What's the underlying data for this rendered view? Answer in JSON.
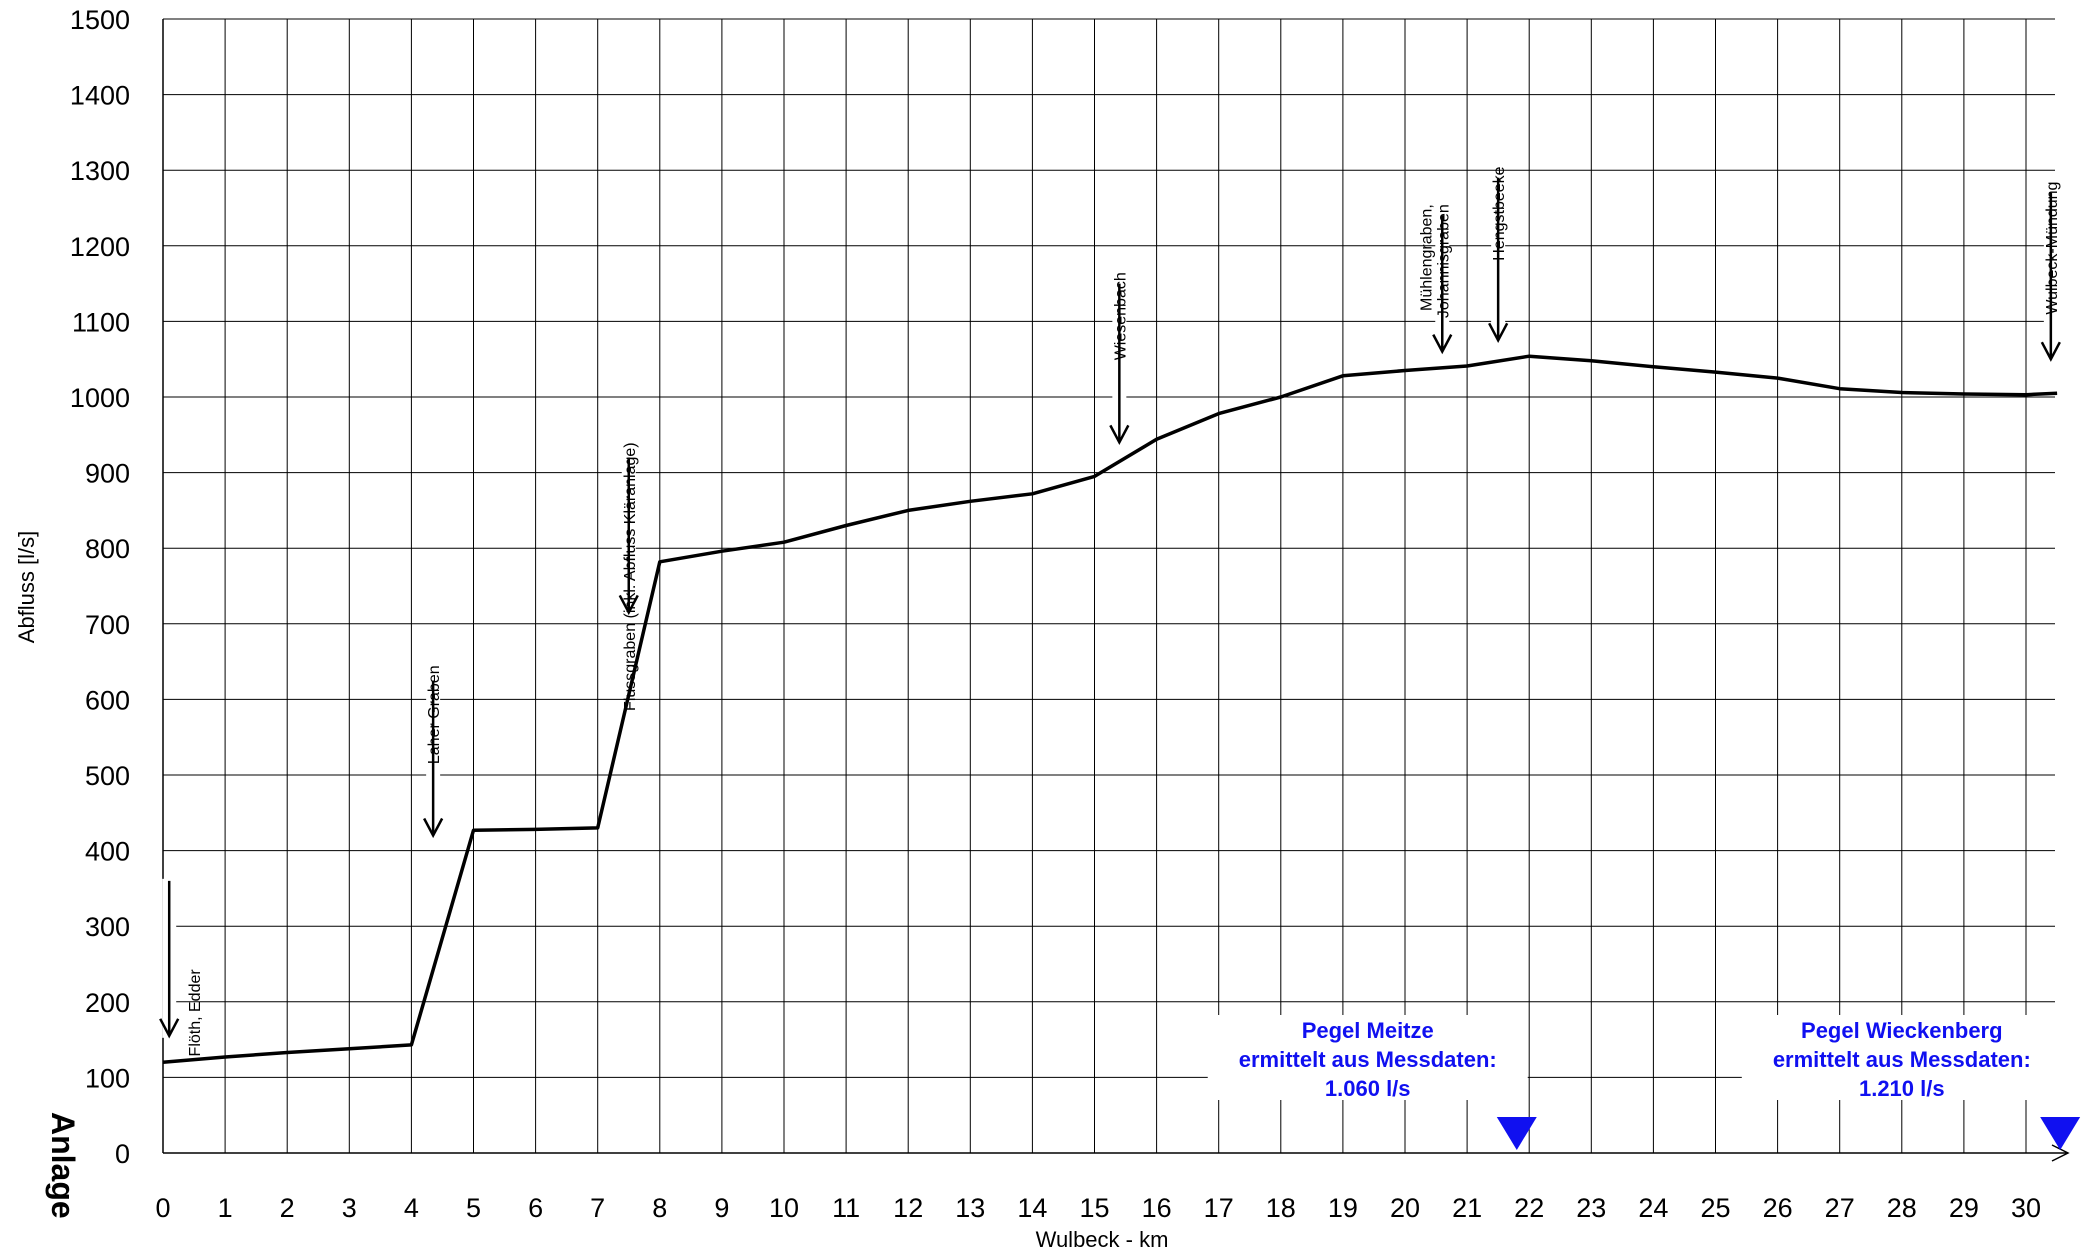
{
  "colors": {
    "line": "#000000",
    "grid": "#000000",
    "gauge": "#1010f0",
    "background": "#ffffff"
  },
  "side_label": "Anlage",
  "chart_data": {
    "type": "line",
    "title": "",
    "xlabel": "Wulbeck - km",
    "ylabel": "Abfluss [l/s]",
    "xlim": [
      0,
      30.5
    ],
    "ylim": [
      0,
      1500
    ],
    "grid": true,
    "x_ticks": [
      0,
      1,
      2,
      3,
      4,
      5,
      6,
      7,
      8,
      9,
      10,
      11,
      12,
      13,
      14,
      15,
      16,
      17,
      18,
      19,
      20,
      21,
      22,
      23,
      24,
      25,
      26,
      27,
      28,
      29,
      30
    ],
    "y_ticks": [
      0,
      100,
      200,
      300,
      400,
      500,
      600,
      700,
      800,
      900,
      1000,
      1100,
      1200,
      1300,
      1400,
      1500
    ],
    "series": [
      {
        "x": [
          0,
          1,
          2,
          3,
          4,
          5,
          6,
          7,
          8,
          9,
          10,
          11,
          12,
          13,
          14,
          15,
          16,
          17,
          18,
          19,
          20,
          21,
          22,
          23,
          24,
          25,
          26,
          27,
          28,
          29,
          30,
          30.5
        ],
        "y": [
          120,
          127,
          133,
          138,
          143,
          427,
          428,
          430,
          782,
          796,
          808,
          830,
          850,
          862,
          872,
          895,
          944,
          978,
          1000,
          1028,
          1035,
          1041,
          1054,
          1048,
          1040,
          1033,
          1025,
          1011,
          1006,
          1004,
          1003,
          1005
        ]
      }
    ],
    "annotations": [
      {
        "text": "Flöth, Edder",
        "x": 0.1,
        "arrow_top": 360,
        "arrow_bottom": 155,
        "text_bottom_y": 243,
        "text_x": 0.5
      },
      {
        "text": "Laher Graben",
        "x": 4.35,
        "arrow_top": 625,
        "arrow_bottom": 420,
        "text_bottom_y": 645,
        "text_x": 4.35
      },
      {
        "text": "Flussgraben (inkl. Abfluss Kläranlage)",
        "x": 7.5,
        "arrow_top": 920,
        "arrow_bottom": 715,
        "text_bottom_y": 940,
        "text_x": 7.5
      },
      {
        "text": "Wiesenbach",
        "x": 15.4,
        "arrow_top": 1150,
        "arrow_bottom": 940,
        "text_bottom_y": 1165,
        "text_x": 15.4
      },
      {
        "text": "Mühlengraben, Johannisgraben",
        "x": 20.6,
        "arrow_top": 1240,
        "arrow_bottom": 1060,
        "text_bottom_y": 1255,
        "text_x": 20.6
      },
      {
        "text": "Hengstbeeke",
        "x": 21.5,
        "arrow_top": 1290,
        "arrow_bottom": 1075,
        "text_bottom_y": 1305,
        "text_x": 21.5
      },
      {
        "text": "Wulbeck-Mündung",
        "x": 30.4,
        "arrow_top": 1270,
        "arrow_bottom": 1050,
        "text_bottom_y": 1285,
        "text_x": 30.4
      }
    ],
    "gauges": [
      {
        "lines": [
          "Pegel Meitze",
          "ermittelt aus Messdaten:",
          "1.060 l/s"
        ],
        "x": 21.8,
        "text_x": 19.4
      },
      {
        "lines": [
          "Pegel Wieckenberg",
          "ermittelt aus Messdaten:",
          "1.210 l/s"
        ],
        "x": 30.55,
        "text_x": 28.0
      }
    ]
  }
}
